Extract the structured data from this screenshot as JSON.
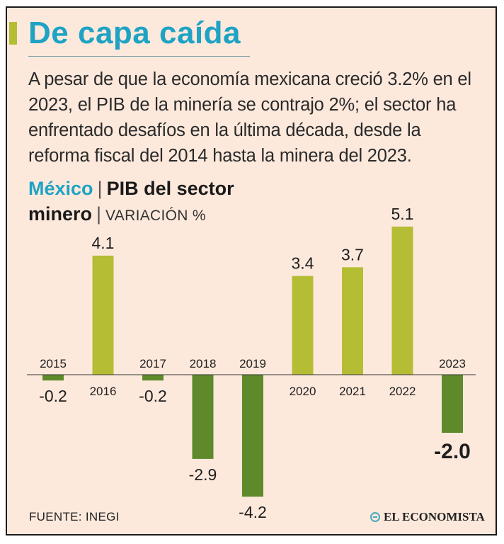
{
  "title": "De capa caída",
  "subtitle": "A pesar de que la economía mexicana creció 3.2% en el 2023, el PIB de la minería se contrajo 2%; el sector ha enfrentado desafíos en la última década, desde la reforma fiscal del 2014 hasta la minera del 2023.",
  "chart_heading": {
    "region": "México",
    "separator": "|",
    "metric_line1": "PIB del sector",
    "metric_line2": "minero",
    "unit": "VARIACIÓN %"
  },
  "source": "FUENTE: INEGI",
  "brand": "EL ECONOMISTA",
  "colors": {
    "frame_background": "#fde9dc",
    "title": "#1ea3c4",
    "accent_bar": "#b5bd34",
    "positive_bar": "#b5bd34",
    "negative_bar": "#5e8a2c",
    "axis": "#333333"
  },
  "chart_data": {
    "type": "bar",
    "categories": [
      "2015",
      "2016",
      "2017",
      "2018",
      "2019",
      "2020",
      "2021",
      "2022",
      "2023"
    ],
    "values": [
      -0.2,
      4.1,
      -0.2,
      -2.9,
      -4.2,
      3.4,
      3.7,
      5.1,
      -2.0
    ],
    "value_labels": [
      "-0.2",
      "4.1",
      "-0.2",
      "-2.9",
      "-4.2",
      "3.4",
      "3.7",
      "5.1",
      "-2.0"
    ],
    "highlight_category": "2023",
    "title": "PIB del sector minero",
    "ylabel": "VARIACIÓN %",
    "xlabel": "",
    "ylim": [
      -4.2,
      5.1
    ],
    "grid": false,
    "legend": "none"
  }
}
